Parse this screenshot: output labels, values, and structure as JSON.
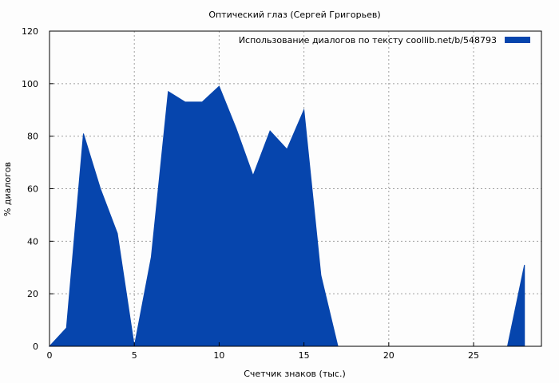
{
  "chart_data": {
    "type": "area",
    "title": "Оптический глаз (Сергей Григорьев)",
    "xlabel": "Счетчик знаков (тыс.)",
    "ylabel": "% диалогов",
    "xlim": [
      0,
      29
    ],
    "ylim": [
      0,
      120
    ],
    "x_ticks": [
      "0",
      "5",
      "10",
      "15",
      "20",
      "25"
    ],
    "y_ticks": [
      "0",
      "20",
      "40",
      "60",
      "80",
      "100",
      "120"
    ],
    "grid": true,
    "legend_position": "top-right",
    "series": [
      {
        "name": "Использование диалогов по тексту  coollib.net/b/548793",
        "color": "#0645ad",
        "x": [
          0,
          1,
          2,
          3,
          4,
          5,
          6,
          7,
          8,
          9,
          10,
          11,
          12,
          13,
          14,
          15,
          16,
          17,
          18,
          19,
          20,
          21,
          22,
          23,
          24,
          25,
          26,
          27,
          28
        ],
        "y": [
          0,
          7,
          81,
          60,
          43,
          0,
          34,
          97,
          93,
          93,
          99,
          83,
          65,
          82,
          75,
          90,
          27,
          0,
          0,
          0,
          0,
          0,
          0,
          0,
          0,
          0,
          0,
          0,
          31
        ]
      }
    ]
  }
}
